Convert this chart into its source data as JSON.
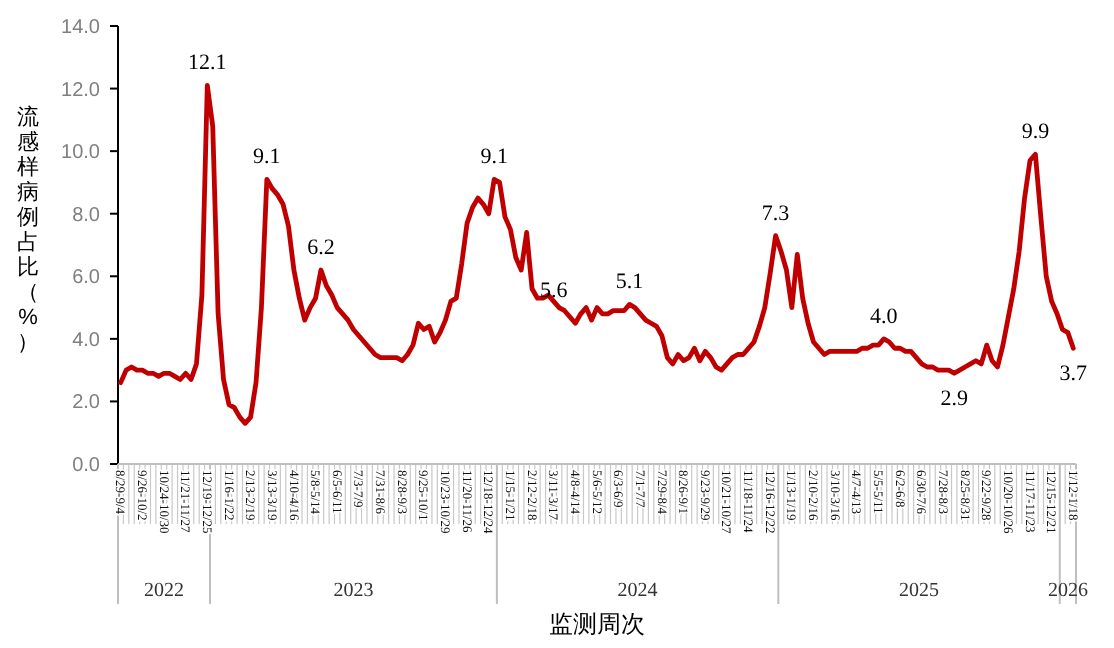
{
  "chart_data": {
    "type": "line",
    "xlabel": "监测周次",
    "ylabel": "流感样病例占比（%）",
    "categories": [
      "8/29-9/4",
      null,
      null,
      null,
      "9/26-10/2",
      null,
      null,
      null,
      "10/24-10/30",
      null,
      null,
      null,
      "11/21-11/27",
      null,
      null,
      null,
      "12/19-12/25",
      null,
      null,
      null,
      "1/16-1/22",
      null,
      null,
      null,
      "2/13-2/19",
      null,
      null,
      null,
      "3/13-3/19",
      null,
      null,
      null,
      "4/10-4/16",
      null,
      null,
      null,
      "5/8-5/14",
      null,
      null,
      null,
      "6/5-6/11",
      null,
      null,
      null,
      "7/3-7/9",
      null,
      null,
      null,
      "7/31-8/6",
      null,
      null,
      null,
      "8/28-9/3",
      null,
      null,
      null,
      "9/25-10/1",
      null,
      null,
      null,
      "10/23-10/29",
      null,
      null,
      null,
      "11/20-11/26",
      null,
      null,
      null,
      "12/18-12/24",
      null,
      null,
      null,
      "1/15-1/21",
      null,
      null,
      null,
      "2/12-2/18",
      null,
      null,
      null,
      "3/11-3/17",
      null,
      null,
      null,
      "4/8-4/14",
      null,
      null,
      null,
      "5/6-5/12",
      null,
      null,
      null,
      "6/3-6/9",
      null,
      null,
      null,
      "7/1-7/7",
      null,
      null,
      null,
      "7/29-8/4",
      null,
      null,
      null,
      "8/26-9/1",
      null,
      null,
      null,
      "9/23-9/29",
      null,
      null,
      null,
      "10/21-10/27",
      null,
      null,
      null,
      "11/18-11/24",
      null,
      null,
      null,
      "12/16-12/22",
      null,
      null,
      null,
      "1/13-1/19",
      null,
      null,
      null,
      "2/10-2/16",
      null,
      null,
      null,
      "3/10-3/16",
      null,
      null,
      null,
      "4/7-4/13",
      null,
      null,
      null,
      "5/5-5/11",
      null,
      null,
      null,
      "6/2-6/8",
      null,
      null,
      null,
      "6/30-7/6",
      null,
      null,
      null,
      "7/28-8/3",
      null,
      null,
      null,
      "8/25-8/31",
      null,
      null,
      null,
      "9/22-9/28",
      null,
      null,
      null,
      "10/20-10/26",
      null,
      null,
      null,
      "11/17-11/23",
      null,
      null,
      null,
      "12/15-12/21",
      null,
      null,
      null,
      "1/12-1/18"
    ],
    "color": "#c00000",
    "values": [
      2.6,
      3.0,
      3.1,
      3.0,
      3.0,
      2.9,
      2.9,
      2.8,
      2.9,
      2.9,
      2.8,
      2.7,
      2.9,
      2.7,
      3.2,
      5.4,
      12.1,
      10.8,
      4.8,
      2.7,
      1.9,
      1.8,
      1.5,
      1.3,
      1.5,
      2.6,
      5.0,
      9.1,
      8.8,
      8.6,
      8.3,
      7.6,
      6.2,
      5.3,
      4.6,
      5.0,
      5.3,
      6.2,
      5.7,
      5.4,
      5.0,
      4.8,
      4.6,
      4.3,
      4.1,
      3.9,
      3.7,
      3.5,
      3.4,
      3.4,
      3.4,
      3.4,
      3.3,
      3.5,
      3.8,
      4.5,
      4.3,
      4.4,
      3.9,
      4.2,
      4.6,
      5.2,
      5.3,
      6.4,
      7.7,
      8.2,
      8.5,
      8.3,
      8.0,
      9.1,
      9.0,
      7.9,
      7.5,
      6.6,
      6.2,
      7.4,
      5.6,
      5.3,
      5.3,
      5.4,
      5.2,
      5.0,
      4.9,
      4.7,
      4.5,
      4.8,
      5.0,
      4.6,
      5.0,
      4.8,
      4.8,
      4.9,
      4.9,
      4.9,
      5.1,
      5.0,
      4.8,
      4.6,
      4.5,
      4.4,
      4.1,
      3.4,
      3.2,
      3.5,
      3.3,
      3.4,
      3.7,
      3.3,
      3.6,
      3.4,
      3.1,
      3.0,
      3.2,
      3.4,
      3.5,
      3.5,
      3.7,
      3.9,
      4.4,
      5.0,
      6.1,
      7.3,
      6.8,
      6.2,
      5.0,
      6.7,
      5.3,
      4.5,
      3.9,
      3.7,
      3.5,
      3.6,
      3.6,
      3.6,
      3.6,
      3.6,
      3.6,
      3.7,
      3.7,
      3.8,
      3.8,
      4.0,
      3.9,
      3.7,
      3.7,
      3.6,
      3.6,
      3.4,
      3.2,
      3.1,
      3.1,
      3.0,
      3.0,
      3.0,
      2.9,
      3.0,
      3.1,
      3.2,
      3.3,
      3.2,
      3.8,
      3.3,
      3.1,
      3.8,
      4.7,
      5.6,
      6.8,
      8.5,
      9.7,
      9.9,
      7.9,
      6.0,
      5.2,
      4.8,
      4.3,
      4.2,
      3.7
    ],
    "value_labels": [
      null,
      null,
      null,
      null,
      null,
      null,
      null,
      null,
      null,
      null,
      null,
      null,
      null,
      null,
      null,
      null,
      "12.1",
      null,
      null,
      null,
      null,
      null,
      null,
      null,
      null,
      null,
      null,
      "9.1",
      null,
      null,
      null,
      null,
      null,
      null,
      null,
      null,
      null,
      "6.2",
      null,
      null,
      null,
      null,
      null,
      null,
      null,
      null,
      null,
      null,
      null,
      null,
      null,
      null,
      null,
      null,
      null,
      null,
      null,
      null,
      null,
      null,
      null,
      null,
      null,
      null,
      null,
      null,
      null,
      null,
      null,
      "9.1",
      null,
      null,
      null,
      null,
      null,
      null,
      "5.6",
      null,
      null,
      null,
      null,
      null,
      null,
      null,
      null,
      null,
      null,
      null,
      null,
      null,
      null,
      null,
      null,
      null,
      "5.1",
      null,
      null,
      null,
      null,
      null,
      null,
      null,
      null,
      null,
      null,
      null,
      null,
      null,
      null,
      null,
      null,
      null,
      null,
      null,
      null,
      null,
      null,
      null,
      null,
      null,
      null,
      "7.3",
      null,
      null,
      null,
      null,
      null,
      null,
      null,
      null,
      null,
      null,
      null,
      null,
      null,
      null,
      null,
      null,
      null,
      null,
      null,
      "4.0",
      null,
      null,
      null,
      null,
      null,
      null,
      null,
      null,
      null,
      null,
      null,
      null,
      "2.9",
      null,
      null,
      null,
      null,
      null,
      null,
      null,
      null,
      null,
      null,
      null,
      null,
      null,
      null,
      "9.9",
      null,
      null,
      null,
      null,
      null,
      null,
      "3.7"
    ],
    "ylim": [
      0,
      14
    ],
    "yticks": [
      {
        "value": 0,
        "label": "0.0"
      },
      {
        "value": 2,
        "label": "2.0"
      },
      {
        "value": 4,
        "label": "4.0"
      },
      {
        "value": 6,
        "label": "6.0"
      },
      {
        "value": 8,
        "label": "8.0"
      },
      {
        "value": 10,
        "label": "10.0"
      },
      {
        "value": 12,
        "label": "12.0"
      },
      {
        "value": 14,
        "label": "14.0"
      }
    ],
    "annotations": [
      "2022",
      "2023",
      "2024",
      "2025",
      "2026"
    ]
  }
}
